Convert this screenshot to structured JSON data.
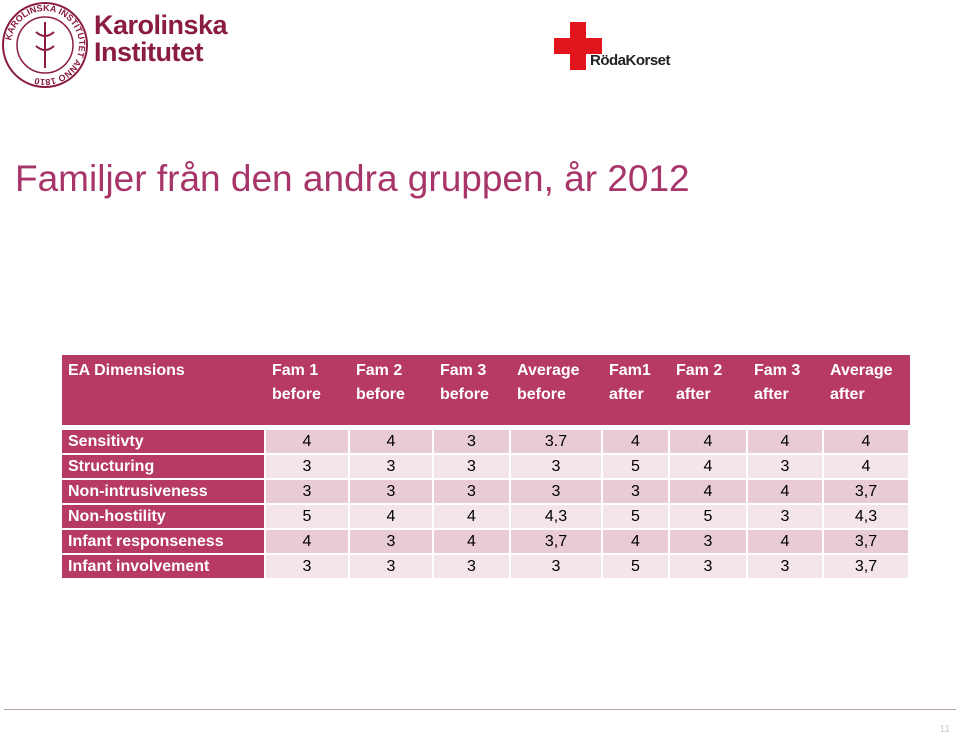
{
  "logos": {
    "ki_seal": "KAROLINSKA INSTITUTET ANNO 1810",
    "ki_name": [
      "Karolinska",
      "Institutet"
    ],
    "rk_name": "RödaKorset"
  },
  "title": "Familjer från den andra gruppen, år 2012",
  "table": {
    "header": [
      [
        "EA Dimensions"
      ],
      [
        "Fam 1",
        "before"
      ],
      [
        "Fam 2",
        "before"
      ],
      [
        "Fam 3",
        "before"
      ],
      [
        "Average",
        "before"
      ],
      [
        "Fam1",
        "after"
      ],
      [
        "Fam 2",
        "after"
      ],
      [
        "Fam 3",
        "after"
      ],
      [
        "Average",
        "after"
      ]
    ],
    "rows": [
      [
        "Sensitivty",
        "4",
        "4",
        "3",
        "3.7",
        "4",
        "4",
        "4",
        "4"
      ],
      [
        "Structuring",
        "3",
        "3",
        "3",
        "3",
        "5",
        "4",
        "3",
        "4"
      ],
      [
        "Non-intrusiveness",
        "3",
        "3",
        "3",
        "3",
        "3",
        "4",
        "4",
        "3,7"
      ],
      [
        "Non-hostility",
        "5",
        "4",
        "4",
        "4,3",
        "5",
        "5",
        "3",
        "4,3"
      ],
      [
        "Infant responseness",
        "4",
        "3",
        "4",
        "3,7",
        "4",
        "3",
        "4",
        "3,7"
      ],
      [
        "Infant involvement",
        "3",
        "3",
        "3",
        "3",
        "5",
        "3",
        "3",
        "3,7"
      ]
    ]
  },
  "page_number": "11"
}
